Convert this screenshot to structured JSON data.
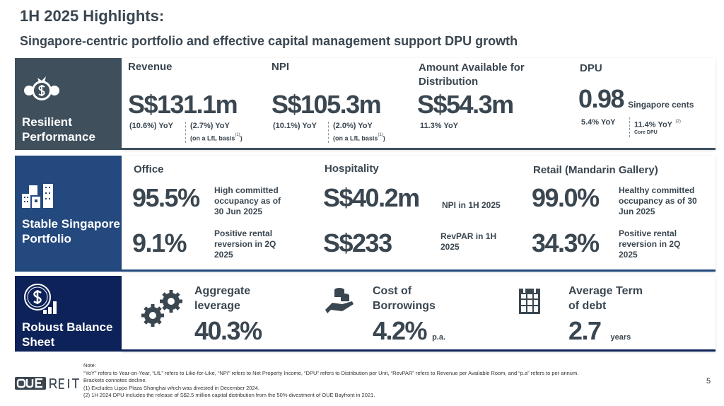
{
  "header": {
    "title": "1H 2025 Highlights:",
    "subtitle": "Singapore-centric portfolio and effective capital management support DPU growth"
  },
  "sections": [
    {
      "label": "Resilient Performance",
      "color": "#3f4f5c",
      "icon": "money-bag-gears-icon"
    },
    {
      "label": "Stable Singapore Portfolio",
      "color": "#24497e",
      "icon": "buildings-icon"
    },
    {
      "label": "Robust Balance Sheet",
      "color": "#0d2259",
      "icon": "dollar-chart-icon"
    }
  ],
  "performance": {
    "revenue": {
      "label": "Revenue",
      "value": "S$131.1m",
      "yoy": "(10.6%) YoY",
      "lfl": "(2.7%) YoY",
      "lfl_note": "(on a LfL basis",
      "sup": "(1)"
    },
    "npi": {
      "label": "NPI",
      "value": "S$105.3m",
      "yoy": "(10.1%) YoY",
      "lfl": "(2.0%) YoY",
      "lfl_note": "(on a LfL basis",
      "sup": "(1)"
    },
    "distribution": {
      "label": "Amount Available for Distribution",
      "value": "S$54.3m",
      "yoy": "11.3% YoY"
    },
    "dpu": {
      "label": "DPU",
      "value": "0.98",
      "unit": "Singapore cents",
      "yoy": "5.4% YoY",
      "core": "11.4% YoY",
      "sup": "(2)",
      "core_label": "Core DPU"
    }
  },
  "portfolio": {
    "office": {
      "label": "Office",
      "v1": "95.5%",
      "d1": "High committed occupancy as of 30 Jun 2025",
      "v2": "9.1%",
      "d2": "Positive rental reversion in 2Q 2025"
    },
    "hospitality": {
      "label": "Hospitality",
      "v1": "S$40.2m",
      "d1": "NPI in 1H 2025",
      "v2": "S$233",
      "d2": "RevPAR in 1H 2025"
    },
    "retail": {
      "label": "Retail (Mandarin Gallery)",
      "v1": "99.0%",
      "d1": "Healthy committed occupancy as of 30 Jun 2025",
      "v2": "34.3%",
      "d2": "Positive rental reversion in 2Q 2025"
    }
  },
  "balance": {
    "leverage": {
      "label": "Aggregate leverage",
      "value": "40.3%",
      "icon": "gears-icon"
    },
    "cost": {
      "label": "Cost of Borrowings",
      "value": "4.2%",
      "unit": "p.a.",
      "icon": "coins-hand-icon"
    },
    "term": {
      "label": "Average Term of debt",
      "value": "2.7",
      "unit": "years",
      "icon": "calendar-icon"
    }
  },
  "footer": {
    "logo": "OUE REIT",
    "notes": [
      "Note:",
      "“YoY” refers to Year-on-Year, “LfL” refers to Like-for-Like, “NPI” refers to Net Property Income, “DPU” refers to Distribution per Unit, “RevPAR” refers to Revenue per Available Room, and “p.a” refers to per annum.",
      "Brackets connotes decline.",
      "(1) Excludes Lippo Plaza Shanghai which was divested in December 2024.",
      "(2) 1H 2024 DPU includes the release of S$2.5 million capital distribution from the 50% divestment of OUE Bayfront in 2021."
    ],
    "page": "5"
  }
}
